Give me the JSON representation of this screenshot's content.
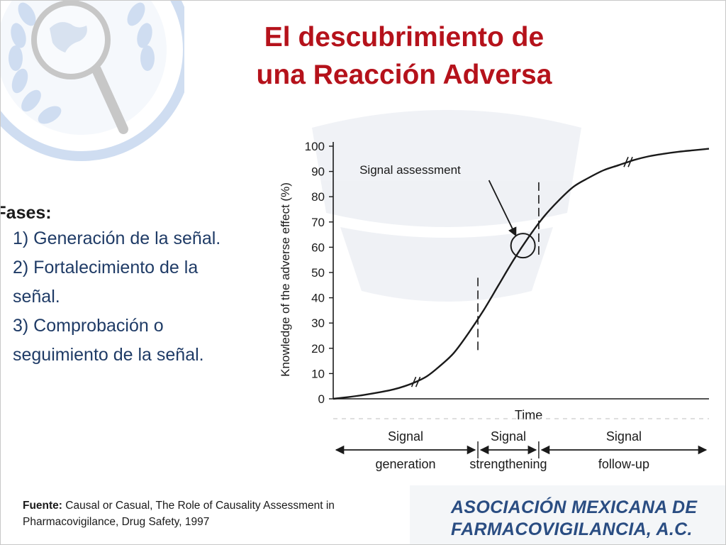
{
  "title": {
    "line1": "El descubrimiento de",
    "line2": "una Reacción Adversa"
  },
  "phases": {
    "heading": "Fases:",
    "items": [
      "1) Generación de la señal.",
      "2) Fortalecimiento de la",
      "señal.",
      "3) Comprobación o",
      "seguimiento de la señal."
    ]
  },
  "chart_data": {
    "type": "line",
    "xlabel": "Time",
    "ylabel": "Knowledge of the adverse effect (%)",
    "ylim": [
      0,
      100
    ],
    "yticks": [
      0,
      10,
      20,
      30,
      40,
      50,
      60,
      70,
      80,
      90,
      100
    ],
    "x_unlabeled": true,
    "grid": false,
    "series": [
      {
        "x": [
          0,
          4,
          8,
          12,
          16,
          19,
          22,
          25,
          28,
          32,
          36,
          40,
          44,
          48,
          52,
          56,
          60,
          64,
          68,
          72,
          76,
          80,
          84,
          88,
          92,
          96,
          100
        ],
        "values": [
          0,
          0.7,
          1.5,
          2.5,
          3.7,
          5,
          6.7,
          9,
          12.5,
          18,
          26,
          35,
          45,
          55,
          64,
          72,
          78.5,
          84,
          87.5,
          90.5,
          92.5,
          94.5,
          96,
          97,
          97.8,
          98.4,
          99
        ]
      }
    ],
    "phase_boundaries": [
      38.5,
      54.7
    ],
    "annotations": [
      "Signal assessment"
    ],
    "phase_labels": [
      {
        "line1": "Signal",
        "line2": "generation"
      },
      {
        "line1": "Signal",
        "line2": "strengthening"
      },
      {
        "line1": "Signal",
        "line2": "follow-up"
      }
    ]
  },
  "source": {
    "label": "Fuente:",
    "text": "Causal or Casual, The Role of Causality Assessment in Pharmacovigilance, Drug Safety, 1997"
  },
  "org": {
    "line1": "ASOCIACIÓN MEXICANA DE",
    "line2": "FARMACOVIGILANCIA, A.C."
  },
  "colors": {
    "title": "#b5121b",
    "phases_text": "#1f3b66",
    "org_text": "#2a4d82",
    "logo": "#a9c3e6"
  }
}
